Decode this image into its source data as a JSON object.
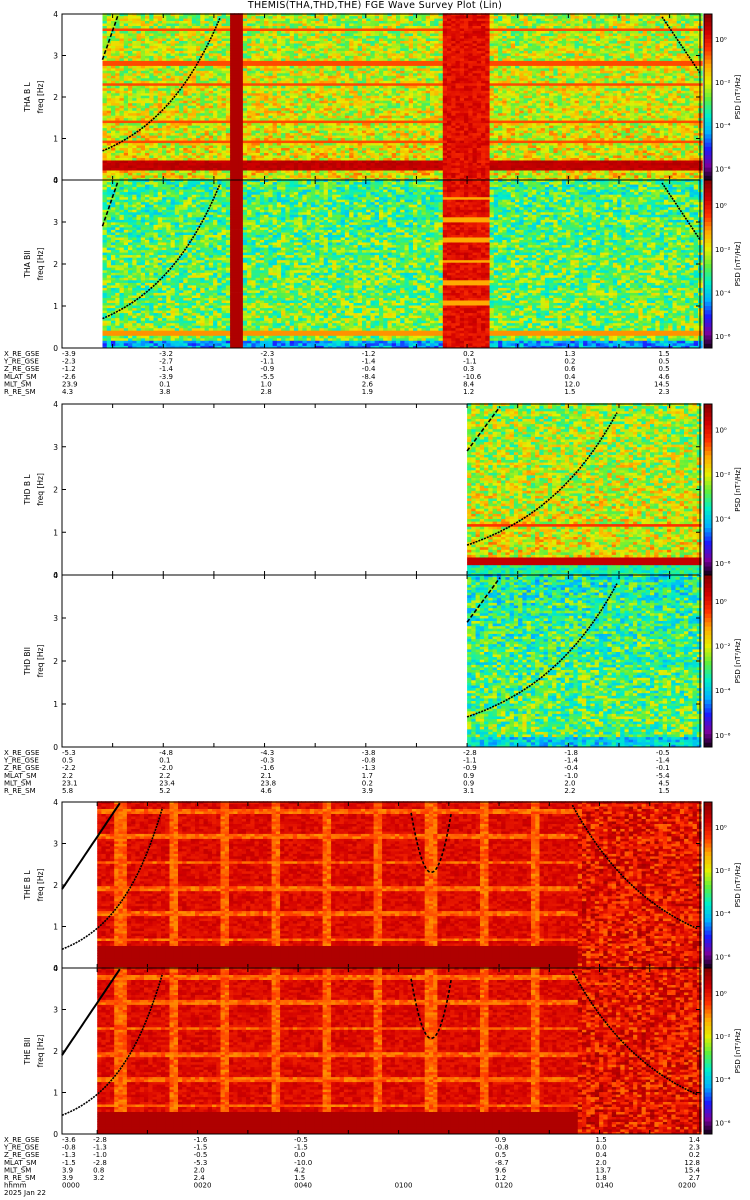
{
  "title": "THEMIS(THA,THD,THE) FGE Wave Survey Plot (Lin)",
  "colors": {
    "curve": "#000000",
    "colormap": [
      "#000000",
      "#7a00a0",
      "#1c1cff",
      "#00b4ff",
      "#00f0c8",
      "#5ff03c",
      "#e6f000",
      "#ffaa00",
      "#ff3200",
      "#d20000",
      "#8c0000"
    ]
  },
  "chart_data": [
    {
      "type": "heatmap",
      "probe": "THA",
      "panels": [
        {
          "ylabel": "THA B L",
          "ylabel2": "freq [Hz]",
          "zlabel": "PSD [nT²/Hz]",
          "ztick_labels": [
            "10⁰",
            "10⁻²",
            "10⁻⁴",
            "10⁻⁶"
          ],
          "ytick_labels": [
            "0",
            "1",
            "2",
            "3",
            "4"
          ],
          "ylim": [
            0,
            4
          ],
          "data_start_min": 8,
          "bright_band_min": [
            75,
            84
          ]
        },
        {
          "ylabel": "THA BII",
          "ylabel2": "freq [Hz]",
          "zlabel": "PSD [nT²/Hz]",
          "ztick_labels": [
            "10⁰",
            "10⁻²",
            "10⁻⁴",
            "10⁻⁶"
          ],
          "ytick_labels": [
            "0",
            "1",
            "2",
            "3",
            "4"
          ],
          "ylim": [
            0,
            4
          ],
          "data_start_min": 8,
          "bright_band_min": [
            76,
            84
          ]
        }
      ],
      "xlim_min": [
        0,
        126
      ],
      "ephemeris_labels": [
        "X_RE_GSE",
        "Y_RE_GSE",
        "Z_RE_GSE",
        "MLAT_SM",
        "MLT_SM",
        "R_RE_SM"
      ],
      "ephemeris_cols_min": [
        0,
        20,
        40,
        60,
        80,
        100,
        120
      ],
      "ephemeris": [
        [
          "-3.9",
          "-3.2",
          "-2.3",
          "-1.2",
          "0.2",
          "1.3",
          "1.5"
        ],
        [
          "-2.3",
          "-2.7",
          "-1.1",
          "-1.4",
          "-1.1",
          "0.2",
          "0.5"
        ],
        [
          "-1.2",
          "-1.4",
          "-0.9",
          "-0.4",
          "0.3",
          "0.6",
          "0.5"
        ],
        [
          "-2.6",
          "-3.9",
          "-5.5",
          "-8.4",
          "-10.6",
          "0.4",
          "4.6"
        ],
        [
          "23.9",
          "0.1",
          "1.0",
          "2.6",
          "8.4",
          "12.0",
          "14.5"
        ],
        [
          "4.3",
          "3.8",
          "2.8",
          "1.9",
          "1.2",
          "1.5",
          "2.3"
        ]
      ]
    },
    {
      "type": "heatmap",
      "probe": "THD",
      "panels": [
        {
          "ylabel": "THD B L",
          "ylabel2": "freq [Hz]",
          "zlabel": "PSD [nT²/Hz]",
          "ztick_labels": [
            "10⁰",
            "10⁻²",
            "10⁻⁴",
            "10⁻⁶"
          ],
          "ytick_labels": [
            "0",
            "1",
            "2",
            "3",
            "4"
          ],
          "ylim": [
            0,
            4
          ],
          "data_start_min": 80
        },
        {
          "ylabel": "THD BII",
          "ylabel2": "freq [Hz]",
          "zlabel": "PSD [nT²/Hz]",
          "ztick_labels": [
            "10⁰",
            "10⁻²",
            "10⁻⁴",
            "10⁻⁶"
          ],
          "ytick_labels": [
            "0",
            "1",
            "2",
            "3",
            "4"
          ],
          "ylim": [
            0,
            4
          ],
          "data_start_min": 80
        }
      ],
      "xlim_min": [
        0,
        126
      ],
      "ephemeris_labels": [
        "X_RE_GSE",
        "Y_RE_GSE",
        "Z_RE_GSE",
        "MLAT_SM",
        "MLT_SM",
        "R_RE_SM"
      ],
      "ephemeris_cols_min": [
        0,
        20,
        40,
        60,
        80,
        100,
        120
      ],
      "ephemeris": [
        [
          "-5.3",
          "-4.8",
          "-4.3",
          "-3.8",
          "-2.8",
          "-1.8",
          "-0.5"
        ],
        [
          "0.5",
          "0.1",
          "-0.3",
          "-0.8",
          "-1.1",
          "-1.4",
          "-1.4"
        ],
        [
          "-2.2",
          "-2.0",
          "-1.6",
          "-1.3",
          "-0.9",
          "-0.4",
          "-0.1"
        ],
        [
          "2.2",
          "2.2",
          "2.1",
          "1.7",
          "0.9",
          "-1.0",
          "-5.4"
        ],
        [
          "23.1",
          "23.4",
          "23.8",
          "0.2",
          "0.9",
          "2.0",
          "4.5"
        ],
        [
          "5.8",
          "5.2",
          "4.6",
          "3.9",
          "3.1",
          "2.2",
          "1.5"
        ]
      ]
    },
    {
      "type": "heatmap",
      "probe": "THE",
      "panels": [
        {
          "ylabel": "THE B L",
          "ylabel2": "freq [Hz]",
          "zlabel": "PSD [nT²/Hz]",
          "ztick_labels": [
            "10⁰",
            "10⁻²",
            "10⁻⁴",
            "10⁻⁶"
          ],
          "ytick_labels": [
            "0",
            "1",
            "2",
            "3",
            "4"
          ],
          "ylim": [
            0,
            4
          ],
          "data_start_min": 0
        },
        {
          "ylabel": "THE BII",
          "ylabel2": "freq [Hz]",
          "zlabel": "PSD [nT²/Hz]",
          "ztick_labels": [
            "10⁰",
            "10⁻²",
            "10⁻⁴",
            "10⁻⁶"
          ],
          "ytick_labels": [
            "0",
            "1",
            "2",
            "3",
            "4"
          ],
          "ylim": [
            0,
            4
          ],
          "data_start_min": 0
        }
      ],
      "xlim_min": [
        -7,
        120
      ],
      "ephemeris_labels": [
        "X_RE_GSE",
        "Y_RE_GSE",
        "Z_RE_GSE",
        "MLAT_SM",
        "MLT_SM",
        "R_RE_SM",
        "hhmm",
        "2025 Jan 22"
      ],
      "ephemeris_cols_min": [
        -7,
        0,
        20,
        40,
        60,
        80,
        100,
        120
      ],
      "ephemeris": [
        [
          "-3.6",
          "-2.8",
          "-1.6",
          "-0.5",
          "0.9",
          "1.5",
          "1.4"
        ],
        [
          "-0.8",
          "-1.3",
          "-1.5",
          "-1.5",
          "-0.8",
          "0.0",
          "2.3"
        ],
        [
          "-1.3",
          "-1.0",
          "-0.5",
          "0.0",
          "0.5",
          "0.4",
          "0.2"
        ],
        [
          "-1.5",
          "-2.8",
          "-5.3",
          "-10.0",
          "-8.7",
          "2.0",
          "12.8"
        ],
        [
          "3.9",
          "0.8",
          "2.0",
          "4.2",
          "9.6",
          "13.7",
          "15.4"
        ],
        [
          "3.9",
          "3.2",
          "2.4",
          "1.5",
          "1.2",
          "1.8",
          "2.7"
        ]
      ],
      "ephemeris_cols_min_sparse": [
        -7,
        0,
        20,
        40,
        80,
        100,
        120
      ],
      "time_labels": [
        "0000",
        "0020",
        "0040",
        "0100",
        "0120",
        "0140",
        "0200"
      ]
    }
  ]
}
